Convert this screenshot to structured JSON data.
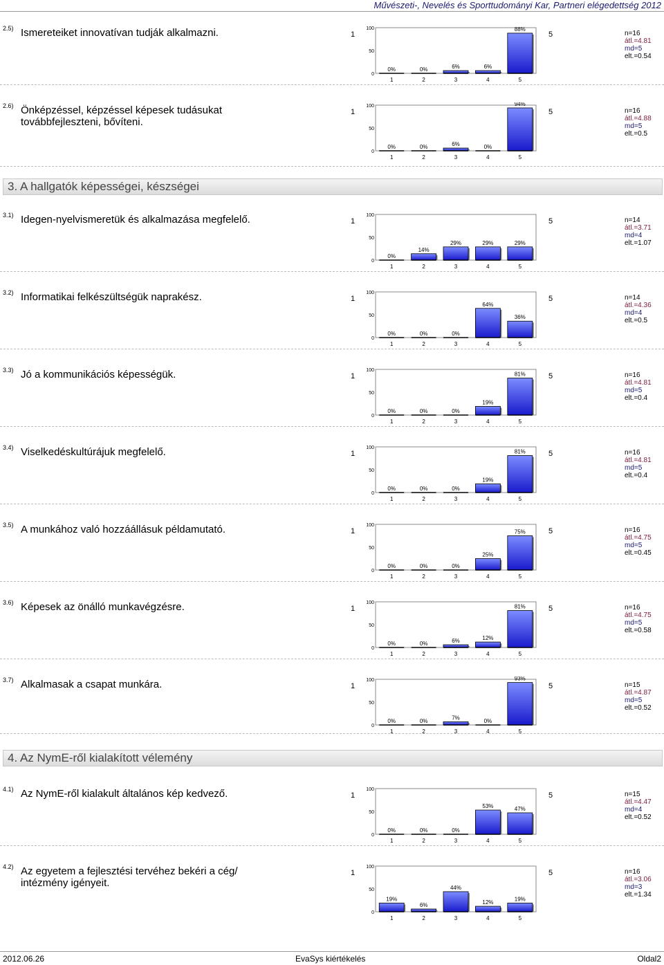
{
  "header": {
    "title": "Művészeti-, Nevelés és Sporttudományi Kar, Partneri elégedettség 2012"
  },
  "scale": {
    "low": "1",
    "high": "5",
    "x_ticks": [
      "1",
      "2",
      "3",
      "4",
      "5"
    ],
    "y_ticks": [
      "100",
      "50",
      "0"
    ]
  },
  "sections": [
    {
      "label": "3. A hallgatók képességei, készségei"
    },
    {
      "label": "4. Az NymE-ről kialakított vélemény"
    }
  ],
  "items": [
    {
      "num": "2.5)",
      "text": "Ismereteiket innovatívan tudják alkalmazni.",
      "n": "n=16",
      "avg": "átl.=4.81",
      "md": "md=5",
      "sd": "elt.=0.54",
      "pcts": [
        0,
        0,
        6,
        6,
        88
      ]
    },
    {
      "num": "2.6)",
      "text": "Önképzéssel, képzéssel képesek tudásukat továbbfejleszteni, bővíteni.",
      "n": "n=16",
      "avg": "átl.=4.88",
      "md": "md=5",
      "sd": "elt.=0.5",
      "pcts": [
        0,
        0,
        6,
        0,
        94
      ]
    },
    {
      "num": "3.1)",
      "text": "Idegen-nyelvismeretük és alkalmazása megfelelő.",
      "n": "n=14",
      "avg": "átl.=3.71",
      "md": "md=4",
      "sd": "elt.=1.07",
      "pcts": [
        0,
        14,
        29,
        29,
        29
      ]
    },
    {
      "num": "3.2)",
      "text": "Informatikai felkészültségük naprakész.",
      "n": "n=14",
      "avg": "átl.=4.36",
      "md": "md=4",
      "sd": "elt.=0.5",
      "pcts": [
        0,
        0,
        0,
        64,
        36
      ]
    },
    {
      "num": "3.3)",
      "text": "Jó a kommunikációs képességük.",
      "n": "n=16",
      "avg": "átl.=4.81",
      "md": "md=5",
      "sd": "elt.=0.4",
      "pcts": [
        0,
        0,
        0,
        19,
        81
      ]
    },
    {
      "num": "3.4)",
      "text": "Viselkedéskultúrájuk megfelelő.",
      "n": "n=16",
      "avg": "átl.=4.81",
      "md": "md=5",
      "sd": "elt.=0.4",
      "pcts": [
        0,
        0,
        0,
        19,
        81
      ]
    },
    {
      "num": "3.5)",
      "text": "A munkához való hozzáállásuk példamutató.",
      "n": "n=16",
      "avg": "átl.=4.75",
      "md": "md=5",
      "sd": "elt.=0.45",
      "pcts": [
        0,
        0,
        0,
        25,
        75
      ]
    },
    {
      "num": "3.6)",
      "text": "Képesek az önálló munkavégzésre.",
      "n": "n=16",
      "avg": "átl.=4.75",
      "md": "md=5",
      "sd": "elt.=0.58",
      "pcts": [
        0,
        0,
        6,
        12,
        81
      ]
    },
    {
      "num": "3.7)",
      "text": "Alkalmasak a csapat munkára.",
      "n": "n=15",
      "avg": "átl.=4.87",
      "md": "md=5",
      "sd": "elt.=0.52",
      "pcts": [
        0,
        0,
        7,
        0,
        93
      ]
    },
    {
      "num": "4.1)",
      "text": "Az NymE-ről kialakult általános kép kedvező.",
      "n": "n=15",
      "avg": "átl.=4.47",
      "md": "md=4",
      "sd": "elt.=0.52",
      "pcts": [
        0,
        0,
        0,
        53,
        47
      ]
    },
    {
      "num": "4.2)",
      "text": "Az egyetem a fejlesztési tervéhez bekéri a cég/ intézmény igényeit.",
      "n": "n=16",
      "avg": "átl.=3.06",
      "md": "md=3",
      "sd": "elt.=1.34",
      "pcts": [
        19,
        6,
        44,
        12,
        19
      ]
    }
  ],
  "colors": {
    "bar_top": "#7c8cff",
    "bar_bottom": "#1a1acc",
    "frame": "#000000"
  },
  "footer": {
    "date": "2012.06.26",
    "center": "EvaSys kiértékelés",
    "page": "Oldal2"
  }
}
